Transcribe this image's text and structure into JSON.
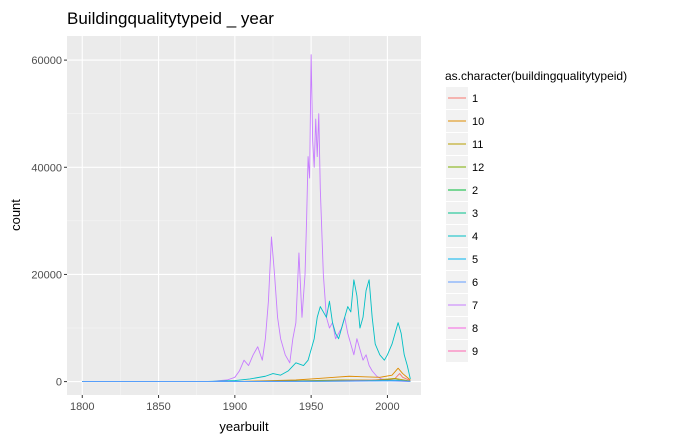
{
  "chart_data": {
    "type": "line",
    "title": "Buildingqualitytypeid _ year",
    "xlabel": "yearbuilt",
    "ylabel": "count",
    "xlim": [
      1790,
      2022
    ],
    "ylim": [
      -2500,
      64500
    ],
    "x_ticks": [
      1800,
      1850,
      1900,
      1950,
      2000
    ],
    "y_ticks": [
      0,
      20000,
      40000,
      60000
    ],
    "x_tick_labels": [
      "1800",
      "1850",
      "1900",
      "1950",
      "2000"
    ],
    "y_tick_labels": [
      "0",
      "20000",
      "40000",
      "60000"
    ],
    "grid": true,
    "legend_position": "right",
    "legend_title": "as.character(buildingqualitytypeid)",
    "series": [
      {
        "name": "1",
        "color": "#F8766D",
        "x": [
          1800,
          1900,
          1920,
          1940,
          1960,
          1975,
          1990,
          2000,
          2005,
          2008,
          2010,
          2015
        ],
        "y": [
          0,
          0,
          50,
          100,
          200,
          250,
          300,
          400,
          600,
          1500,
          800,
          200
        ]
      },
      {
        "name": "10",
        "color": "#DE8C00",
        "x": [
          1800,
          1900,
          1925,
          1940,
          1955,
          1965,
          1975,
          1985,
          1995,
          2003,
          2007,
          2010,
          2015
        ],
        "y": [
          0,
          0,
          200,
          300,
          600,
          800,
          1000,
          900,
          800,
          1200,
          2500,
          1500,
          300
        ]
      },
      {
        "name": "11",
        "color": "#B79F00",
        "x": [
          1800,
          1900,
          1930,
          1950,
          1970,
          1990,
          2005,
          2015
        ],
        "y": [
          0,
          0,
          100,
          200,
          300,
          250,
          600,
          100
        ]
      },
      {
        "name": "12",
        "color": "#7CAE00",
        "x": [
          1800,
          1900,
          1950,
          1980,
          2005,
          2015
        ],
        "y": [
          0,
          0,
          50,
          100,
          300,
          50
        ]
      },
      {
        "name": "2",
        "color": "#00BA38",
        "x": [
          1800,
          1900,
          1950,
          1980,
          2005,
          2015
        ],
        "y": [
          0,
          0,
          100,
          150,
          300,
          50
        ]
      },
      {
        "name": "3",
        "color": "#00C08B",
        "x": [
          1800,
          1900,
          1950,
          1980,
          2005,
          2015
        ],
        "y": [
          0,
          0,
          80,
          120,
          250,
          50
        ]
      },
      {
        "name": "4",
        "color": "#00BFC4",
        "x": [
          1800,
          1880,
          1890,
          1900,
          1910,
          1920,
          1925,
          1930,
          1935,
          1940,
          1945,
          1948,
          1950,
          1952,
          1954,
          1956,
          1958,
          1960,
          1962,
          1964,
          1966,
          1968,
          1970,
          1972,
          1974,
          1976,
          1978,
          1980,
          1982,
          1984,
          1986,
          1988,
          1990,
          1992,
          1995,
          1998,
          2000,
          2003,
          2005,
          2007,
          2009,
          2011,
          2013,
          2015
        ],
        "y": [
          0,
          0,
          100,
          200,
          500,
          1000,
          1500,
          1200,
          2000,
          3500,
          3000,
          4000,
          6000,
          8000,
          12000,
          14000,
          13000,
          12000,
          15000,
          11000,
          9000,
          8000,
          10000,
          12000,
          14000,
          13000,
          19000,
          16000,
          10000,
          12000,
          17000,
          19000,
          12000,
          7000,
          5000,
          4000,
          5000,
          7000,
          9000,
          11000,
          9000,
          5000,
          3000,
          500
        ]
      },
      {
        "name": "5",
        "color": "#00B4F0",
        "x": [
          1800,
          1900,
          1950,
          1980,
          2005,
          2015
        ],
        "y": [
          0,
          0,
          50,
          100,
          200,
          50
        ]
      },
      {
        "name": "6",
        "color": "#619CFF",
        "x": [
          1800,
          1900,
          1950,
          1980,
          2005,
          2015
        ],
        "y": [
          0,
          0,
          50,
          80,
          150,
          30
        ]
      },
      {
        "name": "7",
        "color": "#C77CFF",
        "x": [
          1800,
          1885,
          1890,
          1895,
          1900,
          1903,
          1906,
          1909,
          1912,
          1915,
          1918,
          1920,
          1922,
          1924,
          1926,
          1928,
          1930,
          1933,
          1936,
          1938,
          1940,
          1942,
          1944,
          1946,
          1947,
          1948,
          1949,
          1950,
          1951,
          1952,
          1953,
          1954,
          1955,
          1956,
          1957,
          1958,
          1959,
          1960,
          1962,
          1964,
          1966,
          1968,
          1970,
          1972,
          1974,
          1976,
          1978,
          1980,
          1982,
          1984,
          1986,
          1988,
          1990,
          1993,
          1996,
          2000,
          2005,
          2010,
          2015
        ],
        "y": [
          0,
          0,
          200,
          300,
          800,
          2000,
          4000,
          3000,
          5000,
          6500,
          4000,
          8000,
          15000,
          27000,
          20000,
          12000,
          8000,
          5000,
          3500,
          8000,
          11000,
          24000,
          12000,
          20000,
          30000,
          42000,
          38000,
          61000,
          45000,
          40000,
          49000,
          42000,
          50000,
          36000,
          28000,
          20000,
          16000,
          12000,
          10000,
          11000,
          8000,
          9000,
          10000,
          12000,
          9000,
          7000,
          5000,
          8000,
          6000,
          4000,
          5000,
          3000,
          2000,
          1000,
          500,
          300,
          100,
          50,
          0
        ]
      },
      {
        "name": "8",
        "color": "#F564E3",
        "x": [
          1800,
          1900,
          1950,
          1980,
          2005,
          2015
        ],
        "y": [
          0,
          0,
          100,
          200,
          300,
          50
        ]
      },
      {
        "name": "9",
        "color": "#FF64B0",
        "x": [
          1800,
          1900,
          1950,
          1980,
          2005,
          2015
        ],
        "y": [
          0,
          0,
          80,
          150,
          250,
          50
        ]
      }
    ]
  }
}
